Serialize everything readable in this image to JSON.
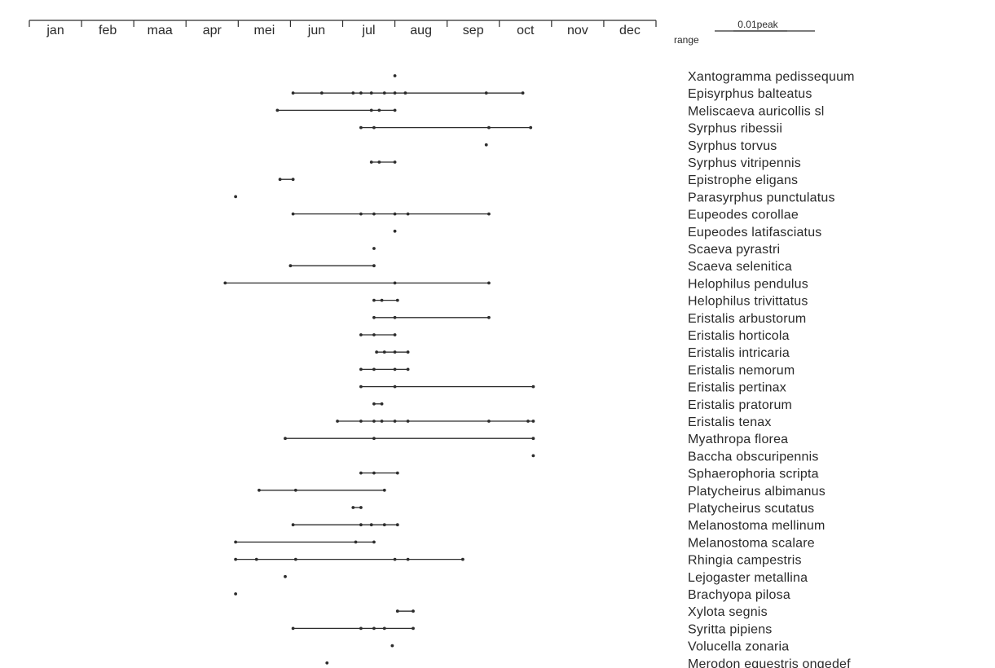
{
  "chart_data": {
    "type": "scatter",
    "xlim": [
      1,
      13
    ],
    "x_ticks": [
      1,
      2,
      3,
      4,
      5,
      6,
      7,
      8,
      9,
      10,
      11,
      12,
      13
    ],
    "months": [
      "jan",
      "feb",
      "maa",
      "apr",
      "mei",
      "jun",
      "jul",
      "aug",
      "sep",
      "oct",
      "nov",
      "dec"
    ],
    "legend": {
      "peak_label": "0.01peak",
      "range_label": "range"
    },
    "series": [
      {
        "name": "Xantogramma pedissequum",
        "range": [],
        "peaks": [
          8.0
        ]
      },
      {
        "name": "Episyrphus balteatus",
        "range": [
          6.05,
          10.45
        ],
        "peaks": [
          6.05,
          6.6,
          7.2,
          7.35,
          7.55,
          7.8,
          8.0,
          8.2,
          9.75,
          10.45
        ]
      },
      {
        "name": "Meliscaeva auricollis sl",
        "range": [
          5.75,
          8.0
        ],
        "peaks": [
          5.75,
          7.55,
          7.7,
          8.0
        ]
      },
      {
        "name": "Syrphus ribessii",
        "range": [
          7.35,
          10.6
        ],
        "peaks": [
          7.35,
          7.6,
          9.8,
          10.6
        ]
      },
      {
        "name": "Syrphus torvus",
        "range": [],
        "peaks": [
          9.75
        ]
      },
      {
        "name": "Syrphus vitripennis",
        "range": [
          7.55,
          8.0
        ],
        "peaks": [
          7.55,
          7.7,
          8.0
        ]
      },
      {
        "name": "Epistrophe eligans",
        "range": [
          5.8,
          6.05
        ],
        "peaks": [
          5.8,
          6.05
        ]
      },
      {
        "name": "Parasyrphus punctulatus",
        "range": [],
        "peaks": [
          4.95
        ]
      },
      {
        "name": "Eupeodes corollae",
        "range": [
          6.05,
          9.8
        ],
        "peaks": [
          6.05,
          7.35,
          7.6,
          8.0,
          8.25,
          9.8
        ]
      },
      {
        "name": "Eupeodes latifasciatus",
        "range": [],
        "peaks": [
          8.0
        ]
      },
      {
        "name": "Scaeva pyrastri",
        "range": [],
        "peaks": [
          7.6
        ]
      },
      {
        "name": "Scaeva selenitica",
        "range": [
          6.0,
          7.6
        ],
        "peaks": [
          6.0,
          7.6
        ]
      },
      {
        "name": "Helophilus pendulus",
        "range": [
          4.75,
          9.8
        ],
        "peaks": [
          4.75,
          8.0,
          9.8
        ]
      },
      {
        "name": "Helophilus trivittatus",
        "range": [
          7.6,
          8.05
        ],
        "peaks": [
          7.6,
          7.75,
          8.05
        ]
      },
      {
        "name": "Eristalis arbustorum",
        "range": [
          7.6,
          9.8
        ],
        "peaks": [
          7.6,
          8.0,
          9.8
        ]
      },
      {
        "name": "Eristalis horticola",
        "range": [
          7.35,
          8.0
        ],
        "peaks": [
          7.35,
          7.6,
          8.0
        ]
      },
      {
        "name": "Eristalis intricaria",
        "range": [
          7.65,
          8.25
        ],
        "peaks": [
          7.65,
          7.8,
          8.0,
          8.25
        ]
      },
      {
        "name": "Eristalis nemorum",
        "range": [
          7.35,
          8.25
        ],
        "peaks": [
          7.35,
          7.6,
          8.0,
          8.25
        ]
      },
      {
        "name": "Eristalis pertinax",
        "range": [
          7.35,
          10.65
        ],
        "peaks": [
          7.35,
          8.0,
          10.65
        ]
      },
      {
        "name": "Eristalis pratorum",
        "range": [
          7.6,
          7.75
        ],
        "peaks": [
          7.6,
          7.75
        ]
      },
      {
        "name": "Eristalis tenax",
        "range": [
          6.9,
          10.65
        ],
        "peaks": [
          6.9,
          7.35,
          7.6,
          7.75,
          8.0,
          8.25,
          9.8,
          10.55,
          10.65
        ]
      },
      {
        "name": "Myathropa florea",
        "range": [
          5.9,
          10.65
        ],
        "peaks": [
          5.9,
          7.6,
          10.65
        ]
      },
      {
        "name": "Baccha obscuripennis",
        "range": [],
        "peaks": [
          10.65
        ]
      },
      {
        "name": "Sphaerophoria scripta",
        "range": [
          7.35,
          8.05
        ],
        "peaks": [
          7.35,
          7.6,
          8.05
        ]
      },
      {
        "name": "Platycheirus albimanus",
        "range": [
          5.4,
          7.8
        ],
        "peaks": [
          5.4,
          6.1,
          7.8
        ]
      },
      {
        "name": "Platycheirus scutatus",
        "range": [
          7.2,
          7.35
        ],
        "peaks": [
          7.2,
          7.35
        ]
      },
      {
        "name": "Melanostoma mellinum",
        "range": [
          6.05,
          8.05
        ],
        "peaks": [
          6.05,
          7.35,
          7.55,
          7.8,
          8.05
        ]
      },
      {
        "name": "Melanostoma scalare",
        "range": [
          4.95,
          7.6
        ],
        "peaks": [
          4.95,
          7.25,
          7.6
        ]
      },
      {
        "name": "Rhingia campestris",
        "range": [
          4.95,
          9.3
        ],
        "peaks": [
          4.95,
          5.35,
          6.1,
          8.0,
          8.25,
          9.3
        ]
      },
      {
        "name": "Lejogaster metallina",
        "range": [],
        "peaks": [
          5.9
        ]
      },
      {
        "name": "Brachyopa pilosa",
        "range": [],
        "peaks": [
          4.95
        ]
      },
      {
        "name": "Xylota segnis",
        "range": [
          8.05,
          8.35
        ],
        "peaks": [
          8.05,
          8.35
        ]
      },
      {
        "name": "Syritta pipiens",
        "range": [
          6.05,
          8.35
        ],
        "peaks": [
          6.05,
          7.35,
          7.6,
          7.8,
          8.35
        ]
      },
      {
        "name": "Volucella zonaria",
        "range": [],
        "peaks": [
          7.95
        ]
      },
      {
        "name": "Merodon equestris ongedef",
        "range": [],
        "peaks": [
          6.7
        ]
      }
    ]
  }
}
